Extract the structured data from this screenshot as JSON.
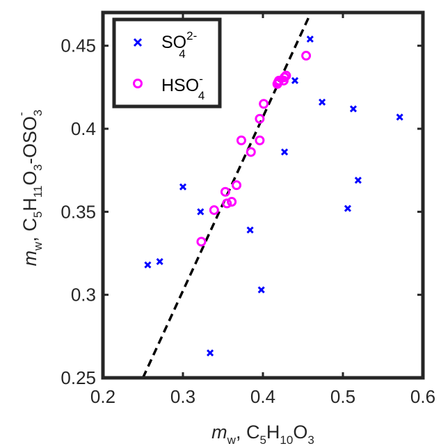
{
  "chart_data": {
    "type": "scatter",
    "xlim": [
      0.2,
      0.6
    ],
    "ylim": [
      0.25,
      0.47
    ],
    "xticks": [
      "0.2",
      "0.3",
      "0.4",
      "0.5",
      "0.6"
    ],
    "yticks": [
      "0.25",
      "0.3",
      "0.35",
      "0.4",
      "0.45"
    ],
    "xlabel": {
      "m": "m",
      "w": "w",
      "rest": ", C",
      "s1": "5",
      "H": "H",
      "s2": "10",
      "O": "O",
      "s3": "3"
    },
    "ylabel": {
      "m": "m",
      "w": "w",
      "rest": ", C",
      "s1": "5",
      "H": "H",
      "s2": "11",
      "O": "O",
      "s3": "3",
      "dash": "-OSO",
      "s4": "3",
      "sup": "-"
    },
    "legend_position": "top-left",
    "grid": false,
    "series": [
      {
        "name": "SO42-",
        "label": {
          "base": "SO",
          "sub": "4",
          "sup": "2-"
        },
        "marker": "x",
        "color": "#0000ff",
        "points": [
          [
            0.256,
            0.318
          ],
          [
            0.271,
            0.32
          ],
          [
            0.3,
            0.365
          ],
          [
            0.322,
            0.35
          ],
          [
            0.334,
            0.265
          ],
          [
            0.384,
            0.339
          ],
          [
            0.398,
            0.303
          ],
          [
            0.427,
            0.386
          ],
          [
            0.44,
            0.429
          ],
          [
            0.459,
            0.454
          ],
          [
            0.474,
            0.416
          ],
          [
            0.506,
            0.352
          ],
          [
            0.513,
            0.412
          ],
          [
            0.519,
            0.369
          ],
          [
            0.571,
            0.407
          ]
        ]
      },
      {
        "name": "HSO4-",
        "label": {
          "base": "HSO",
          "sub": "4",
          "sup": "-"
        },
        "marker": "o",
        "color": "#ff00ff",
        "points": [
          [
            0.323,
            0.332
          ],
          [
            0.339,
            0.351
          ],
          [
            0.353,
            0.362
          ],
          [
            0.355,
            0.355
          ],
          [
            0.361,
            0.356
          ],
          [
            0.367,
            0.366
          ],
          [
            0.373,
            0.393
          ],
          [
            0.385,
            0.386
          ],
          [
            0.396,
            0.393
          ],
          [
            0.396,
            0.406
          ],
          [
            0.401,
            0.415
          ],
          [
            0.418,
            0.427
          ],
          [
            0.419,
            0.428
          ],
          [
            0.42,
            0.429
          ],
          [
            0.426,
            0.429
          ],
          [
            0.427,
            0.431
          ],
          [
            0.429,
            0.432
          ],
          [
            0.454,
            0.444
          ]
        ]
      }
    ],
    "fit_line": {
      "style": "dashed",
      "color": "#000000",
      "points": [
        [
          0.25,
          0.25
        ],
        [
          0.46,
          0.47
        ]
      ]
    }
  }
}
